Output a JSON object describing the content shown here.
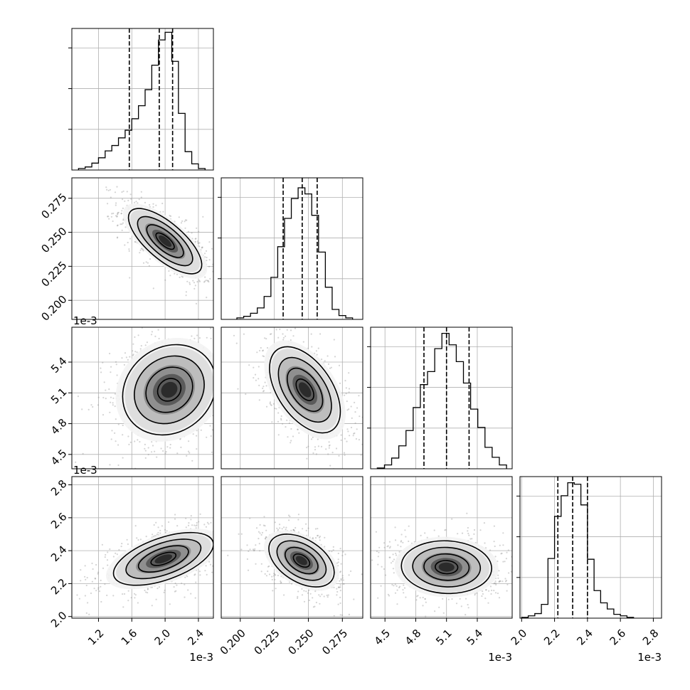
{
  "chart_data": {
    "type": "corner",
    "grid": true,
    "parameters": [
      {
        "id": "p1",
        "range": [
          0.00088,
          0.00258
        ],
        "ticks": [
          0.0012,
          0.0016,
          0.002,
          0.0024
        ],
        "tick_labels": [
          "1.2",
          "1.6",
          "2.0",
          "2.4"
        ],
        "offset_label": "1e-3",
        "quantiles": [
          0.00157,
          0.00193,
          0.00209
        ],
        "hist_max": 185,
        "hist": [
          {
            "x": 0.001,
            "v": 2
          },
          {
            "x": 0.00108,
            "v": 4
          },
          {
            "x": 0.00116,
            "v": 9
          },
          {
            "x": 0.00124,
            "v": 16
          },
          {
            "x": 0.00132,
            "v": 25
          },
          {
            "x": 0.0014,
            "v": 32
          },
          {
            "x": 0.00148,
            "v": 42
          },
          {
            "x": 0.00156,
            "v": 52
          },
          {
            "x": 0.00164,
            "v": 67
          },
          {
            "x": 0.00172,
            "v": 84
          },
          {
            "x": 0.0018,
            "v": 105
          },
          {
            "x": 0.00188,
            "v": 137
          },
          {
            "x": 0.00196,
            "v": 170
          },
          {
            "x": 0.00204,
            "v": 180
          },
          {
            "x": 0.00212,
            "v": 142
          },
          {
            "x": 0.0022,
            "v": 74
          },
          {
            "x": 0.00228,
            "v": 24
          },
          {
            "x": 0.00236,
            "v": 8
          },
          {
            "x": 0.00244,
            "v": 2
          }
        ]
      },
      {
        "id": "p2",
        "range": [
          0.186,
          0.29
        ],
        "ticks": [
          0.2,
          0.225,
          0.25,
          0.275
        ],
        "tick_labels": [
          "0.200",
          "0.225",
          "0.250",
          "0.275"
        ],
        "offset_label": "",
        "quantiles": [
          0.2315,
          0.2455,
          0.2565
        ],
        "hist_max": 185,
        "hist": [
          {
            "x": 0.2,
            "v": 2
          },
          {
            "x": 0.205,
            "v": 4
          },
          {
            "x": 0.21,
            "v": 8
          },
          {
            "x": 0.215,
            "v": 15
          },
          {
            "x": 0.22,
            "v": 30
          },
          {
            "x": 0.225,
            "v": 55
          },
          {
            "x": 0.23,
            "v": 95
          },
          {
            "x": 0.235,
            "v": 132
          },
          {
            "x": 0.24,
            "v": 158
          },
          {
            "x": 0.245,
            "v": 172
          },
          {
            "x": 0.25,
            "v": 164
          },
          {
            "x": 0.255,
            "v": 136
          },
          {
            "x": 0.26,
            "v": 88
          },
          {
            "x": 0.265,
            "v": 42
          },
          {
            "x": 0.27,
            "v": 13
          },
          {
            "x": 0.275,
            "v": 5
          },
          {
            "x": 0.28,
            "v": 2
          }
        ]
      },
      {
        "id": "p3",
        "range": [
          0.00436,
          0.00574
        ],
        "ticks": [
          0.0045,
          0.0048,
          0.0051,
          0.0054
        ],
        "tick_labels": [
          "4.5",
          "4.8",
          "5.1",
          "5.4"
        ],
        "offset_label": "1e-3",
        "quantiles": [
          0.00488,
          0.0051,
          0.00532
        ],
        "hist_max": 185,
        "hist": [
          {
            "x": 0.00446,
            "v": 1
          },
          {
            "x": 0.00453,
            "v": 5
          },
          {
            "x": 0.0046,
            "v": 14
          },
          {
            "x": 0.00467,
            "v": 30
          },
          {
            "x": 0.00474,
            "v": 50
          },
          {
            "x": 0.00481,
            "v": 80
          },
          {
            "x": 0.00488,
            "v": 110
          },
          {
            "x": 0.00495,
            "v": 127
          },
          {
            "x": 0.00502,
            "v": 157
          },
          {
            "x": 0.00509,
            "v": 177
          },
          {
            "x": 0.00516,
            "v": 162
          },
          {
            "x": 0.00523,
            "v": 140
          },
          {
            "x": 0.0053,
            "v": 112
          },
          {
            "x": 0.00537,
            "v": 78
          },
          {
            "x": 0.00544,
            "v": 54
          },
          {
            "x": 0.00551,
            "v": 28
          },
          {
            "x": 0.00558,
            "v": 15
          },
          {
            "x": 0.00565,
            "v": 5
          }
        ]
      },
      {
        "id": "p4",
        "range": [
          0.00199,
          0.00285
        ],
        "ticks": [
          0.002,
          0.0022,
          0.0024,
          0.0026,
          0.0028
        ],
        "tick_labels": [
          "2.0",
          "2.2",
          "2.4",
          "2.6",
          "2.8"
        ],
        "offset_label": "1e-3",
        "quantiles": [
          0.00222,
          0.00231,
          0.0024
        ],
        "hist_max": 185,
        "hist": [
          {
            "x": 0.00202,
            "v": 1
          },
          {
            "x": 0.00206,
            "v": 3
          },
          {
            "x": 0.0021,
            "v": 6
          },
          {
            "x": 0.00214,
            "v": 18
          },
          {
            "x": 0.00218,
            "v": 78
          },
          {
            "x": 0.00222,
            "v": 133
          },
          {
            "x": 0.00226,
            "v": 160
          },
          {
            "x": 0.0023,
            "v": 177
          },
          {
            "x": 0.00234,
            "v": 175
          },
          {
            "x": 0.00238,
            "v": 148
          },
          {
            "x": 0.00242,
            "v": 77
          },
          {
            "x": 0.00246,
            "v": 36
          },
          {
            "x": 0.0025,
            "v": 20
          },
          {
            "x": 0.00254,
            "v": 12
          },
          {
            "x": 0.00258,
            "v": 5
          },
          {
            "x": 0.00262,
            "v": 3
          },
          {
            "x": 0.00266,
            "v": 1
          }
        ]
      }
    ],
    "pairs": [
      {
        "x": 0,
        "y": 1,
        "mode": [
          0.002,
          0.2435
        ],
        "sigma": [
          0.00022,
          0.012
        ],
        "rho": -0.72
      },
      {
        "x": 0,
        "y": 2,
        "mode": [
          0.00205,
          0.00513
        ],
        "sigma": [
          0.00028,
          0.00022
        ],
        "rho": 0.15
      },
      {
        "x": 1,
        "y": 2,
        "mode": [
          0.2475,
          0.00513
        ],
        "sigma": [
          0.013,
          0.00021
        ],
        "rho": -0.5
      },
      {
        "x": 0,
        "y": 3,
        "mode": [
          0.00198,
          0.00235
        ],
        "sigma": [
          0.0003,
          8e-05
        ],
        "rho": 0.55
      },
      {
        "x": 1,
        "y": 3,
        "mode": [
          0.245,
          0.00234
        ],
        "sigma": [
          0.012,
          8e-05
        ],
        "rho": -0.45
      },
      {
        "x": 2,
        "y": 3,
        "mode": [
          0.0051,
          0.0023
        ],
        "sigma": [
          0.00022,
          8e-05
        ],
        "rho": -0.05
      }
    ],
    "contour_levels": [
      0.5,
      1.0,
      1.5,
      2.0
    ]
  }
}
